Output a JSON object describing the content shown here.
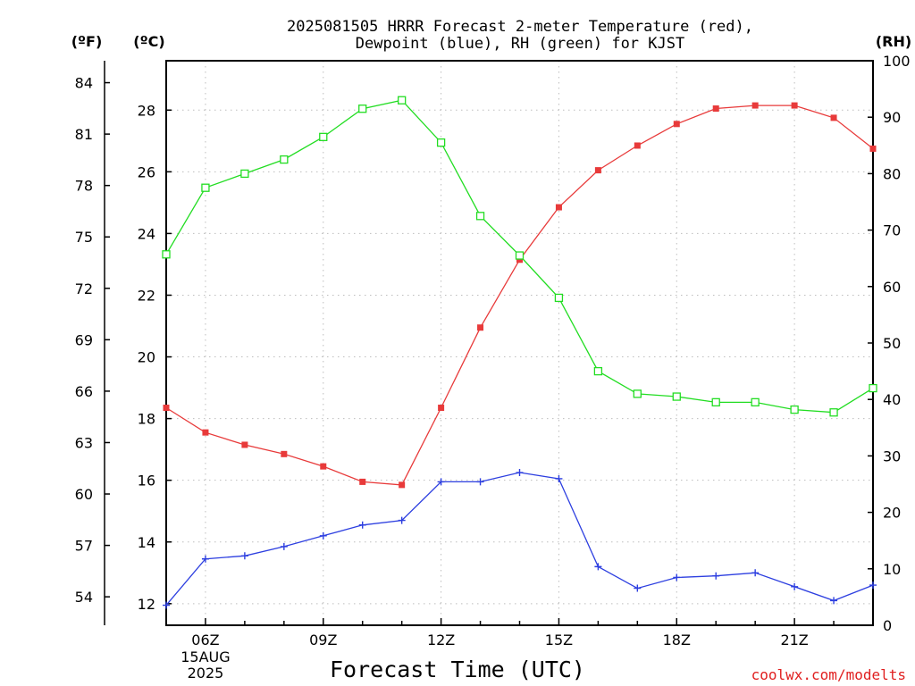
{
  "title_lines": [
    "2025081505 HRRR Forecast 2-meter Temperature (red),",
    "Dewpoint (blue), RH (green) for KJST"
  ],
  "units": {
    "fahrenheit": "(ºF)",
    "celsius": "(ºC)",
    "rh": "(RH)"
  },
  "credit": "coolwx.com/modelts",
  "chart_data": {
    "type": "line",
    "title": "2025081505 HRRR Forecast 2-meter Temperature (red), Dewpoint (blue), RH (green) for KJST",
    "xlabel": "Forecast Time (UTC)",
    "x": [
      "05Z",
      "06Z",
      "07Z",
      "08Z",
      "09Z",
      "10Z",
      "11Z",
      "12Z",
      "13Z",
      "14Z",
      "15Z",
      "16Z",
      "17Z",
      "18Z",
      "19Z",
      "20Z",
      "21Z",
      "22Z",
      "23Z"
    ],
    "x_ticks": [
      "06Z",
      "09Z",
      "12Z",
      "15Z",
      "18Z",
      "21Z"
    ],
    "date_label": [
      "15AUG",
      "2025"
    ],
    "y_left_celsius": {
      "range": [
        11.3,
        29.6
      ],
      "ticks": [
        12,
        14,
        16,
        18,
        20,
        22,
        24,
        26,
        28
      ]
    },
    "y_left_fahrenheit": {
      "ticks": [
        54,
        57,
        60,
        63,
        66,
        69,
        72,
        75,
        78,
        81,
        84
      ]
    },
    "y_right_rh": {
      "range": [
        0,
        100
      ],
      "ticks": [
        0,
        10,
        20,
        30,
        40,
        50,
        60,
        70,
        80,
        90,
        100
      ]
    },
    "grid": true,
    "series": [
      {
        "name": "2-meter Temperature",
        "axis": "celsius",
        "color": "#e83a3a",
        "marker": "filled-square",
        "values": [
          18.35,
          17.55,
          17.15,
          16.85,
          16.45,
          15.95,
          15.85,
          18.35,
          20.95,
          23.15,
          24.85,
          26.05,
          26.85,
          27.55,
          28.05,
          28.15,
          28.15,
          27.75,
          26.75
        ]
      },
      {
        "name": "Dewpoint",
        "axis": "celsius",
        "color": "#2d3fe0",
        "marker": "plus",
        "values": [
          11.95,
          13.45,
          13.55,
          13.85,
          14.2,
          14.55,
          14.7,
          15.95,
          15.95,
          16.25,
          16.05,
          13.2,
          12.5,
          12.85,
          12.9,
          13.0,
          12.55,
          12.1,
          12.6
        ]
      },
      {
        "name": "RH",
        "axis": "rh",
        "color": "#22dd22",
        "marker": "open-square",
        "values": [
          65.7,
          77.5,
          80.0,
          82.5,
          86.5,
          91.5,
          93.0,
          85.5,
          72.5,
          65.5,
          58.0,
          45.0,
          41.0,
          40.5,
          39.5,
          39.5,
          38.2,
          37.7,
          42.0
        ]
      }
    ]
  }
}
